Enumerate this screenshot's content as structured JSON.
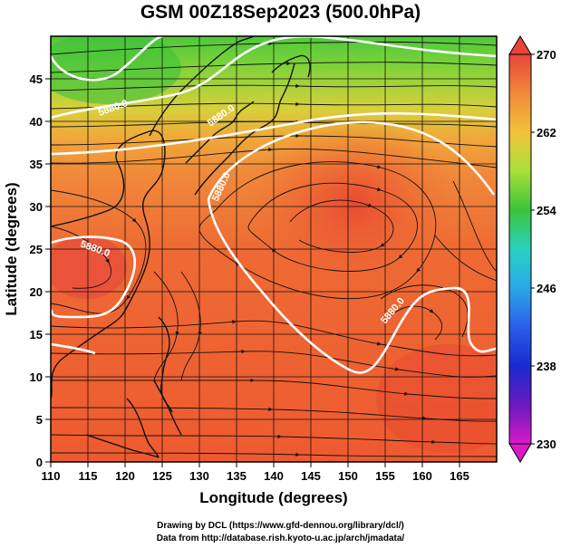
{
  "title": "GSM 00Z18Sep2023 (500.0hPa)",
  "xlabel": "Longitude (degrees)",
  "ylabel": "Latitude  (degrees)",
  "x_ticks": [
    "110",
    "115",
    "120",
    "125",
    "130",
    "135",
    "140",
    "145",
    "150",
    "155",
    "160",
    "165"
  ],
  "y_ticks": [
    "0",
    "5",
    "10",
    "15",
    "20",
    "25",
    "30",
    "35",
    "40",
    "45"
  ],
  "colorbar": {
    "ticks": [
      "270",
      "262",
      "254",
      "246",
      "238",
      "230"
    ],
    "colors": [
      "#e8443a",
      "#f08a3a",
      "#f2c23a",
      "#c6e23a",
      "#3ac43a",
      "#2ad2c0",
      "#2aa8e8",
      "#2a5ee8",
      "#1a2ad0",
      "#6a1ac0",
      "#d81ac8"
    ]
  },
  "contour_labels": [
    "5880.0",
    "5880.0",
    "5880.0",
    "5880.0",
    "5880.0"
  ],
  "credits": {
    "line1": "Drawing by DCL (https://www.gfd-dennou.org/library/dcl/)",
    "line2": "Data from http://database.rish.kyoto-u.ac.jp/arch/jmadata/"
  },
  "chart_data": {
    "type": "heatmap",
    "variable": "500.0hPa",
    "xlim": [
      110,
      170
    ],
    "ylim": [
      0,
      50
    ],
    "colorbar_range": [
      230,
      270
    ],
    "grid": true
  }
}
